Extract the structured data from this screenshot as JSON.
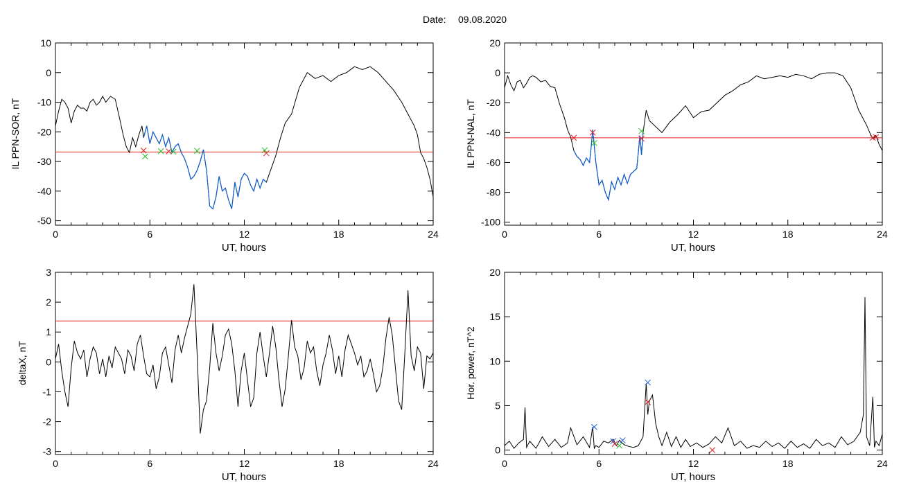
{
  "header": {
    "date_label": "Date:",
    "date_value": "09.08.2020"
  },
  "colors": {
    "trace": "#000000",
    "highlight": "#1060d0",
    "threshold": "#e02020",
    "marker_red": "#e02020",
    "marker_green": "#20c020",
    "marker_blue": "#2060e0"
  },
  "chart_data": [
    {
      "id": "p1",
      "type": "line",
      "title": "",
      "xlabel": "UT, hours",
      "ylabel": "IL PPN-SOR, nT",
      "xlim": [
        0,
        24
      ],
      "ylim": [
        -51.5,
        10
      ],
      "xticks": [
        "0",
        "6",
        "12",
        "18",
        "24"
      ],
      "yticks": [
        "10",
        "0",
        "-10",
        "-20",
        "-30",
        "-40",
        "-50"
      ],
      "ytick_values": [
        10,
        0,
        -10,
        -20,
        -30,
        -40,
        -50
      ],
      "threshold": -26.8,
      "highlight_range": [
        5.6,
        13.4
      ],
      "series": [
        {
          "x": [
            0,
            0.2,
            0.4,
            0.6,
            0.8,
            1.0,
            1.2,
            1.4,
            1.6,
            1.8,
            2.0,
            2.2,
            2.4,
            2.6,
            2.8,
            3.0,
            3.2,
            3.5,
            3.8,
            4.1,
            4.3,
            4.5,
            4.7,
            4.9,
            5.1,
            5.3,
            5.5,
            5.6,
            5.8,
            6.0,
            6.2,
            6.4,
            6.6,
            6.8,
            7.0,
            7.2,
            7.4,
            7.6,
            7.8,
            8.0,
            8.2,
            8.4,
            8.6,
            8.8,
            9.0,
            9.2,
            9.4,
            9.6,
            9.8,
            10.0,
            10.2,
            10.4,
            10.6,
            10.8,
            11.0,
            11.2,
            11.4,
            11.6,
            11.8,
            12.0,
            12.2,
            12.4,
            12.6,
            12.8,
            13.0,
            13.2,
            13.4,
            13.6,
            13.8,
            14.0,
            14.3,
            14.6,
            15.0,
            15.5,
            16.0,
            16.5,
            17.0,
            17.5,
            18.0,
            18.5,
            19.0,
            19.5,
            20.0,
            20.5,
            21.0,
            21.5,
            22.0,
            22.3,
            22.6,
            22.8,
            23.0,
            23.2,
            23.4,
            23.6,
            23.8,
            24.0
          ],
          "y": [
            -18,
            -13,
            -9,
            -10,
            -12,
            -17,
            -13,
            -11,
            -12,
            -12,
            -13,
            -10,
            -9,
            -11,
            -10,
            -8,
            -10,
            -8,
            -9,
            -16,
            -21,
            -25,
            -27,
            -22,
            -25,
            -21,
            -18,
            -22,
            -18,
            -24,
            -20,
            -22,
            -24,
            -21,
            -25,
            -22,
            -27,
            -25,
            -24,
            -27,
            -29,
            -32,
            -36,
            -35,
            -33,
            -30,
            -26,
            -33,
            -45,
            -46,
            -42,
            -35,
            -40,
            -39,
            -43,
            -46,
            -37,
            -42,
            -36,
            -34,
            -35,
            -38,
            -40,
            -36,
            -39,
            -36,
            -37,
            -34,
            -31,
            -28,
            -22,
            -17,
            -14,
            -5,
            0,
            -2,
            -1,
            -3,
            -1,
            0,
            2,
            1,
            2,
            0,
            -3,
            -6,
            -10,
            -13,
            -16,
            -18,
            -21,
            -27,
            -29,
            -32,
            -36,
            -42
          ],
          "name": ""
        }
      ],
      "markers": [
        {
          "x": 5.6,
          "y": -26.3,
          "color": "red"
        },
        {
          "x": 5.7,
          "y": -28.3,
          "color": "green"
        },
        {
          "x": 6.7,
          "y": -26.5,
          "color": "green"
        },
        {
          "x": 7.2,
          "y": -26.6,
          "color": "red"
        },
        {
          "x": 7.5,
          "y": -26.7,
          "color": "green"
        },
        {
          "x": 9.0,
          "y": -26.4,
          "color": "green"
        },
        {
          "x": 13.3,
          "y": -26.2,
          "color": "green"
        },
        {
          "x": 13.4,
          "y": -27.2,
          "color": "red"
        }
      ]
    },
    {
      "id": "p2",
      "type": "line",
      "title": "",
      "xlabel": "UT, hours",
      "ylabel": "IL PPN-NAL, nT",
      "xlim": [
        0,
        24
      ],
      "ylim": [
        -102,
        20
      ],
      "xticks": [
        "0",
        "6",
        "12",
        "18",
        "24"
      ],
      "yticks": [
        "20",
        "0",
        "-20",
        "-40",
        "-60",
        "-80",
        "-100"
      ],
      "ytick_values": [
        20,
        0,
        -20,
        -40,
        -60,
        -80,
        -100
      ],
      "threshold": -43.5,
      "highlight_range": [
        4.3,
        8.8
      ],
      "series": [
        {
          "x": [
            0,
            0.2,
            0.4,
            0.6,
            0.8,
            1.0,
            1.2,
            1.4,
            1.6,
            1.8,
            2.0,
            2.3,
            2.6,
            2.9,
            3.2,
            3.5,
            3.8,
            4.0,
            4.2,
            4.4,
            4.6,
            4.8,
            5.0,
            5.2,
            5.4,
            5.5,
            5.6,
            5.8,
            6.0,
            6.2,
            6.4,
            6.6,
            6.8,
            7.0,
            7.2,
            7.4,
            7.6,
            7.8,
            8.0,
            8.2,
            8.4,
            8.6,
            8.7,
            8.8,
            9.0,
            9.2,
            9.5,
            10.0,
            10.5,
            11.0,
            11.5,
            12.0,
            12.5,
            13.0,
            13.5,
            14.0,
            14.5,
            15.0,
            15.5,
            16.0,
            16.5,
            17.0,
            17.5,
            18.0,
            18.5,
            19.0,
            19.5,
            20.0,
            20.5,
            21.0,
            21.5,
            22.0,
            22.5,
            23.0,
            23.2,
            23.4,
            23.6,
            23.8,
            24.0
          ],
          "y": [
            -10,
            -2,
            -8,
            -12,
            -6,
            -5,
            -10,
            -7,
            -3,
            -2,
            -3,
            -6,
            -5,
            -9,
            -10,
            -21,
            -30,
            -38,
            -43,
            -52,
            -56,
            -58,
            -62,
            -57,
            -60,
            -50,
            -38,
            -60,
            -75,
            -72,
            -80,
            -85,
            -73,
            -78,
            -70,
            -75,
            -68,
            -74,
            -68,
            -66,
            -64,
            -42,
            -55,
            -40,
            -25,
            -32,
            -35,
            -40,
            -33,
            -28,
            -22,
            -30,
            -26,
            -25,
            -20,
            -15,
            -12,
            -8,
            -6,
            -2,
            -4,
            -3,
            -2,
            -3,
            -1,
            -2,
            -4,
            -1,
            0,
            0,
            -2,
            -10,
            -25,
            -35,
            -40,
            -44,
            -42,
            -48,
            -52
          ]
        }
      ],
      "markers": [
        {
          "x": 4.4,
          "y": -43.5,
          "color": "red"
        },
        {
          "x": 5.6,
          "y": -40,
          "color": "red"
        },
        {
          "x": 5.7,
          "y": -47,
          "color": "green"
        },
        {
          "x": 8.7,
          "y": -39,
          "color": "green"
        },
        {
          "x": 8.7,
          "y": -44,
          "color": "red"
        },
        {
          "x": 23.4,
          "y": -43.5,
          "color": "red"
        },
        {
          "x": 23.6,
          "y": -43,
          "color": "red"
        }
      ]
    },
    {
      "id": "p3",
      "type": "line",
      "title": "",
      "xlabel": "UT, hours",
      "ylabel": "deltaX, nT",
      "xlim": [
        0,
        24
      ],
      "ylim": [
        -3.1,
        3
      ],
      "xticks": [
        "0",
        "6",
        "12",
        "18",
        "24"
      ],
      "yticks": [
        "3",
        "2",
        "1",
        "0",
        "-1",
        "-2",
        "-3"
      ],
      "ytick_values": [
        3,
        2,
        1,
        0,
        -1,
        -2,
        -3
      ],
      "threshold": 1.37,
      "series": [
        {
          "x": [
            0,
            0.2,
            0.4,
            0.6,
            0.8,
            1.0,
            1.2,
            1.4,
            1.6,
            1.8,
            2.0,
            2.2,
            2.4,
            2.6,
            2.8,
            3.0,
            3.2,
            3.4,
            3.6,
            3.8,
            4.0,
            4.2,
            4.4,
            4.6,
            4.8,
            5.0,
            5.2,
            5.4,
            5.6,
            5.8,
            6.0,
            6.2,
            6.4,
            6.6,
            6.8,
            7.0,
            7.2,
            7.4,
            7.6,
            7.8,
            8.0,
            8.2,
            8.4,
            8.6,
            8.8,
            9.0,
            9.2,
            9.4,
            9.6,
            9.8,
            10.0,
            10.2,
            10.4,
            10.6,
            10.8,
            11.0,
            11.2,
            11.4,
            11.6,
            11.8,
            12.0,
            12.2,
            12.4,
            12.6,
            12.8,
            13.0,
            13.2,
            13.4,
            13.6,
            13.8,
            14.0,
            14.2,
            14.4,
            14.6,
            14.8,
            15.0,
            15.2,
            15.4,
            15.6,
            15.8,
            16.0,
            16.2,
            16.4,
            16.6,
            16.8,
            17.0,
            17.2,
            17.4,
            17.6,
            17.8,
            18.0,
            18.2,
            18.4,
            18.6,
            18.8,
            19.0,
            19.2,
            19.4,
            19.6,
            19.8,
            20.0,
            20.2,
            20.4,
            20.6,
            20.8,
            21.0,
            21.2,
            21.4,
            21.6,
            21.8,
            22.0,
            22.2,
            22.4,
            22.6,
            22.8,
            23.0,
            23.2,
            23.4,
            23.6,
            23.8,
            24.0
          ],
          "y": [
            0.1,
            0.6,
            -0.3,
            -1.0,
            -1.5,
            -0.2,
            0.7,
            0.3,
            0.1,
            0.4,
            -0.5,
            0.1,
            0.5,
            0.3,
            -0.4,
            0.1,
            -0.5,
            0.2,
            -0.2,
            0.5,
            0.3,
            0.1,
            -0.4,
            0.4,
            0.2,
            -0.3,
            0.6,
            0.9,
            0.2,
            -0.4,
            -0.5,
            -0.1,
            -0.9,
            -0.5,
            0.3,
            0.5,
            -0.1,
            -0.7,
            0.4,
            0.9,
            0.3,
            0.8,
            1.2,
            1.6,
            2.6,
            0.3,
            -2.4,
            -1.6,
            -1.3,
            -0.2,
            1.3,
            0.3,
            -0.3,
            0.2,
            0.9,
            1.1,
            0.6,
            -0.3,
            -1.5,
            -0.3,
            0.3,
            -0.6,
            -1.5,
            -1.2,
            0.3,
            1.0,
            0.2,
            -0.5,
            0.3,
            1.2,
            0.5,
            -0.6,
            -1.5,
            -0.9,
            0.2,
            1.4,
            0.5,
            0.2,
            -0.6,
            -0.2,
            0.7,
            0.3,
            0.5,
            -0.3,
            -0.8,
            -0.1,
            0.3,
            0.9,
            0.4,
            -0.4,
            0.2,
            -0.5,
            0.4,
            0.9,
            0.6,
            0.3,
            -0.1,
            0.2,
            -0.5,
            -0.3,
            0.1,
            -0.4,
            -1.0,
            -0.8,
            -0.2,
            0.8,
            1.5,
            0.9,
            -0.2,
            -1.3,
            -1.6,
            0.3,
            2.4,
            0.2,
            -0.3,
            0.5,
            0.3,
            -0.9,
            0.2,
            0.1,
            0.3
          ]
        }
      ],
      "markers": []
    },
    {
      "id": "p4",
      "type": "line",
      "title": "",
      "xlabel": "UT, hours",
      "ylabel": "Hor. power, nT^2",
      "xlim": [
        0,
        24
      ],
      "ylim": [
        -0.5,
        20
      ],
      "xticks": [
        "0",
        "6",
        "12",
        "18",
        "24"
      ],
      "yticks": [
        "20",
        "15",
        "10",
        "5",
        "0"
      ],
      "ytick_values": [
        20,
        15,
        10,
        5,
        0
      ],
      "series": [
        {
          "x": [
            0,
            0.3,
            0.6,
            0.9,
            1.2,
            1.3,
            1.4,
            1.6,
            2.0,
            2.4,
            2.8,
            3.2,
            3.6,
            4.0,
            4.2,
            4.6,
            5.0,
            5.4,
            5.6,
            5.7,
            5.8,
            6.0,
            6.3,
            6.6,
            6.9,
            7.1,
            7.3,
            7.6,
            7.9,
            8.2,
            8.5,
            8.8,
            9.0,
            9.1,
            9.2,
            9.4,
            9.6,
            9.8,
            10.0,
            10.3,
            10.6,
            10.9,
            11.2,
            11.5,
            11.8,
            12.2,
            12.6,
            13.0,
            13.4,
            13.8,
            14.2,
            14.6,
            15.0,
            15.4,
            15.8,
            16.2,
            16.6,
            17.0,
            17.4,
            17.8,
            18.2,
            18.6,
            19.0,
            19.4,
            19.8,
            20.2,
            20.6,
            21.0,
            21.4,
            21.8,
            22.2,
            22.6,
            22.8,
            22.9,
            23.0,
            23.2,
            23.4,
            23.5,
            23.6,
            23.8,
            24.0
          ],
          "y": [
            0.5,
            1.0,
            0.2,
            0.8,
            1.2,
            4.8,
            0.3,
            1.0,
            0.2,
            1.5,
            0.4,
            1.2,
            0.3,
            0.8,
            2.5,
            0.6,
            1.5,
            0.3,
            2.6,
            0.2,
            0.5,
            0.3,
            1.0,
            0.8,
            1.2,
            0.5,
            1.1,
            0.6,
            0.4,
            0.3,
            0.5,
            1.5,
            7.5,
            4.0,
            5.5,
            6.2,
            3.0,
            1.5,
            0.5,
            2.0,
            0.4,
            1.5,
            0.3,
            1.2,
            0.4,
            0.8,
            0.3,
            0.7,
            1.5,
            0.8,
            2.5,
            0.5,
            1.0,
            0.2,
            0.5,
            0.3,
            1.0,
            0.4,
            0.8,
            0.2,
            1.0,
            0.3,
            0.7,
            0.2,
            1.2,
            0.5,
            0.8,
            0.3,
            1.5,
            0.6,
            1.0,
            2.0,
            4.0,
            17.2,
            1.5,
            0.5,
            6.0,
            0.3,
            1.0,
            0.5,
            1.8
          ]
        }
      ],
      "markers": [
        {
          "x": 5.7,
          "y": 2.6,
          "color": "blue"
        },
        {
          "x": 6.9,
          "y": 1.0,
          "color": "blue"
        },
        {
          "x": 7.0,
          "y": 0.7,
          "color": "red"
        },
        {
          "x": 7.5,
          "y": 1.1,
          "color": "blue"
        },
        {
          "x": 7.3,
          "y": 0.5,
          "color": "green"
        },
        {
          "x": 9.1,
          "y": 7.6,
          "color": "blue"
        },
        {
          "x": 9.1,
          "y": 5.4,
          "color": "red"
        },
        {
          "x": 13.2,
          "y": 0.0,
          "color": "red"
        }
      ]
    }
  ]
}
